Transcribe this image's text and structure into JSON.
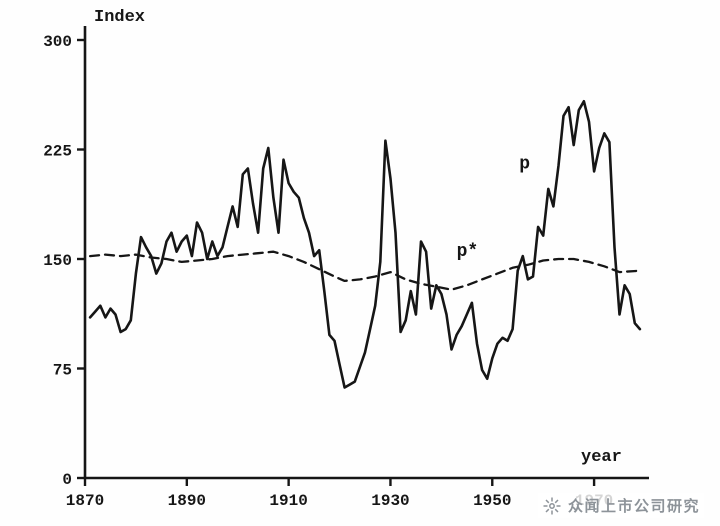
{
  "page": {
    "background": "#ffffff",
    "ink_color": "#161616"
  },
  "watermark": {
    "text": "众闻上市公司研究",
    "icon": "starburst-logo",
    "color": "#8d9399"
  },
  "chart_data": {
    "type": "line",
    "title": "",
    "ylabel": "Index",
    "xlabel": "year",
    "xlim": [
      1870,
      1980
    ],
    "ylim": [
      0,
      300
    ],
    "x_ticks": [
      1870,
      1890,
      1910,
      1930,
      1950,
      1970
    ],
    "y_ticks": [
      0,
      75,
      150,
      225,
      300
    ],
    "grid": false,
    "legend_position": "inline-annotations",
    "series": [
      {
        "name": "p",
        "style": "solid",
        "start_year": 1871,
        "values": [
          110,
          114,
          118,
          110,
          116,
          112,
          100,
          102,
          108,
          140,
          165,
          158,
          152,
          140,
          147,
          162,
          168,
          155,
          162,
          166,
          152,
          175,
          168,
          150,
          162,
          152,
          158,
          172,
          186,
          172,
          208,
          212,
          188,
          168,
          212,
          226,
          192,
          168,
          218,
          202,
          196,
          192,
          178,
          168,
          152,
          156,
          128,
          98,
          94,
          78,
          62,
          64,
          66,
          76,
          86,
          102,
          118,
          148,
          231,
          205,
          168,
          100,
          108,
          128,
          112,
          162,
          155,
          116,
          132,
          126,
          112,
          88,
          98,
          104,
          112,
          120,
          92,
          74,
          68,
          82,
          92,
          96,
          94,
          102,
          142,
          152,
          136,
          138,
          172,
          166,
          198,
          186,
          214,
          248,
          254,
          228,
          252,
          258,
          244,
          210,
          226,
          236,
          230,
          158,
          112,
          132,
          126,
          106,
          102
        ]
      },
      {
        "name": "p*",
        "style": "dashed",
        "years": [
          1871,
          1874,
          1877,
          1880,
          1883,
          1886,
          1889,
          1892,
          1895,
          1898,
          1901,
          1904,
          1907,
          1910,
          1913,
          1916,
          1919,
          1921,
          1924,
          1927,
          1930,
          1933,
          1936,
          1939,
          1942,
          1945,
          1948,
          1951,
          1954,
          1957,
          1960,
          1963,
          1966,
          1969,
          1972,
          1975,
          1979
        ],
        "values": [
          152,
          153,
          152,
          153,
          151,
          150,
          148,
          149,
          150,
          152,
          153,
          154,
          155,
          152,
          148,
          143,
          138,
          135,
          136,
          138,
          141,
          136,
          133,
          131,
          129,
          132,
          136,
          140,
          144,
          146,
          149,
          150,
          150,
          148,
          145,
          141,
          142
        ]
      }
    ],
    "annotations": [
      {
        "text": "p",
        "year": 1955.3,
        "value": 212
      },
      {
        "text": "p*",
        "year": 1943.0,
        "value": 152
      }
    ]
  }
}
